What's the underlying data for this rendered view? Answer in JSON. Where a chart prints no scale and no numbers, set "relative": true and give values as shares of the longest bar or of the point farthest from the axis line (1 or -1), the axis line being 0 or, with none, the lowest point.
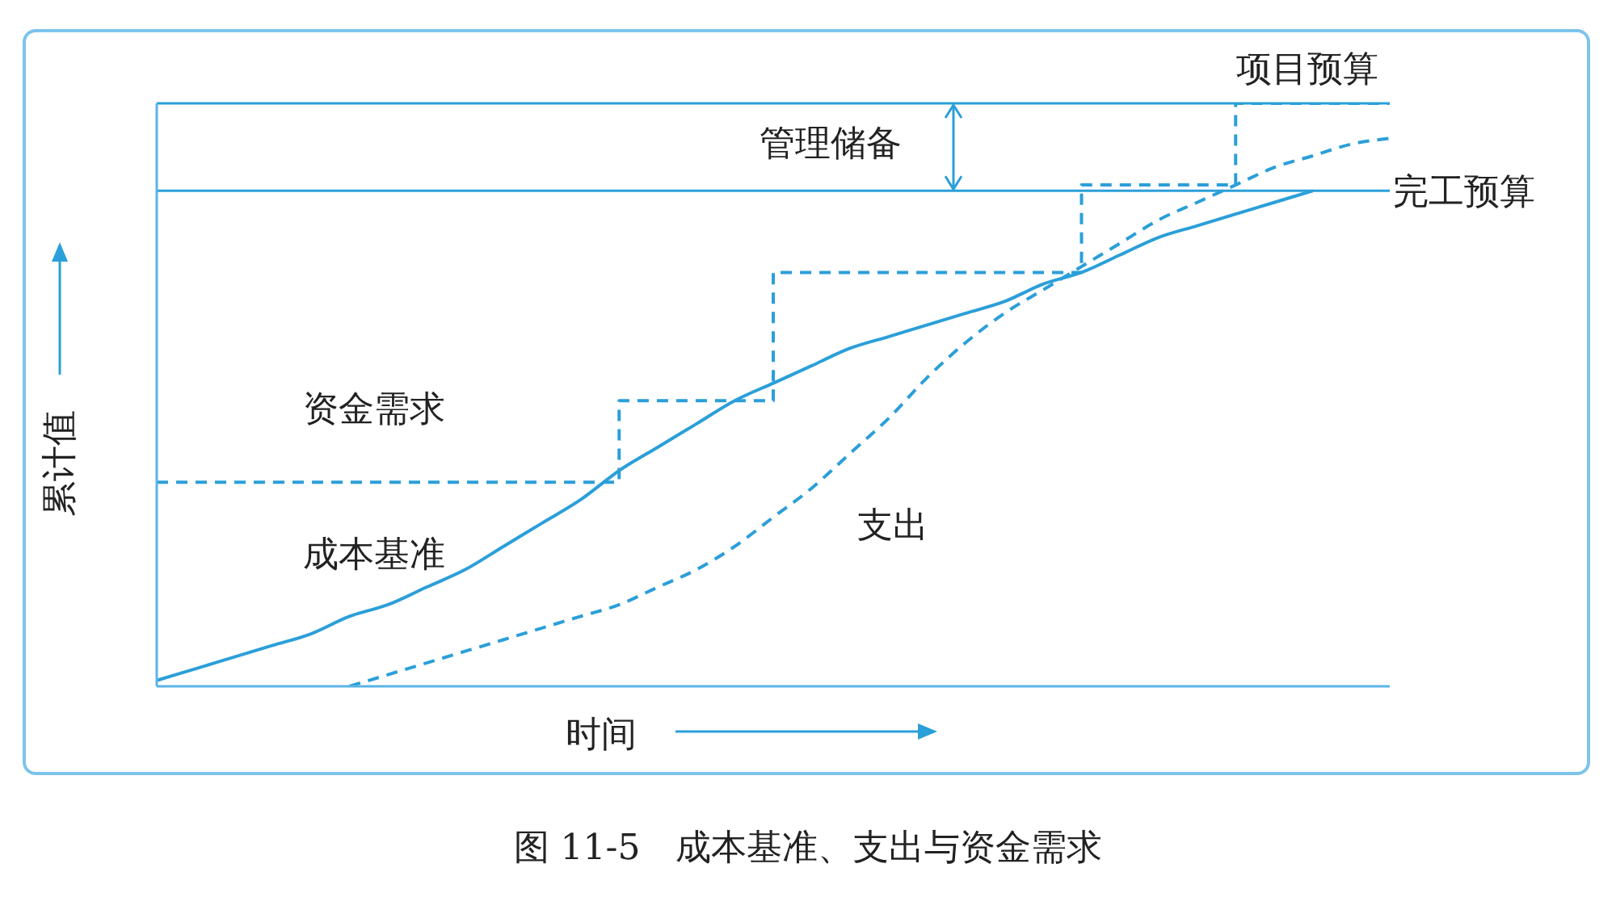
{
  "chart_data": {
    "type": "line",
    "relative": true,
    "title": "图 11-5　成本基准、支出与资金需求",
    "xlabel": "时间",
    "ylabel": "累计值",
    "grid": false,
    "legend": false,
    "marker": "none",
    "categories": [
      null,
      null,
      null,
      null,
      null,
      null,
      null,
      null,
      null,
      null,
      null,
      null,
      null,
      null,
      null,
      null,
      null,
      null,
      null,
      null,
      null,
      null,
      null,
      null,
      null,
      null,
      null,
      null,
      null,
      null,
      null,
      null,
      null
    ],
    "series": [
      {
        "name": "资金需求",
        "type": "step",
        "line_style": "dashed",
        "color": "#2b9fd9",
        "values": [
          0.35,
          0.35,
          0.35,
          0.35,
          0.35,
          0.35,
          0.35,
          0.35,
          0.35,
          0.35,
          0.35,
          0.35,
          0.49,
          0.49,
          0.49,
          0.49,
          0.71,
          0.71,
          0.71,
          0.71,
          0.71,
          0.71,
          0.71,
          0.71,
          0.86,
          0.86,
          0.86,
          0.86,
          1,
          1,
          1,
          1,
          1
        ]
      },
      {
        "name": "成本基准",
        "type": "line",
        "line_style": "solid",
        "color": "#2b9fd9",
        "values": [
          0.01,
          0.03,
          0.05,
          0.07,
          0.09,
          0.12,
          0.14,
          0.17,
          0.2,
          0.24,
          0.28,
          0.32,
          0.37,
          0.41,
          0.45,
          0.49,
          0.52,
          0.55,
          0.58,
          0.6,
          0.62,
          0.64,
          0.66,
          0.69,
          0.71,
          0.74,
          0.77,
          0.79,
          0.81,
          0.83,
          0.85,
          null,
          null
        ]
      },
      {
        "name": "支出",
        "type": "line",
        "line_style": "dashed",
        "color": "#2b9fd9",
        "values": [
          null,
          null,
          null,
          null,
          null,
          0,
          0.02,
          0.04,
          0.06,
          0.08,
          0.1,
          0.12,
          0.14,
          0.17,
          0.2,
          0.24,
          0.29,
          0.34,
          0.4,
          0.46,
          0.53,
          0.59,
          0.64,
          0.68,
          0.72,
          0.76,
          0.8,
          0.83,
          0.86,
          0.89,
          0.91,
          0.93,
          0.94
        ]
      }
    ],
    "ref_lines": [
      {
        "axis": "y",
        "value": 1,
        "label": "项目预算",
        "color": "#2b9fd9"
      },
      {
        "axis": "y",
        "value": 0.85,
        "label": "完工预算",
        "color": "#2b9fd9"
      }
    ],
    "annotations": [
      "管理储备"
    ]
  }
}
